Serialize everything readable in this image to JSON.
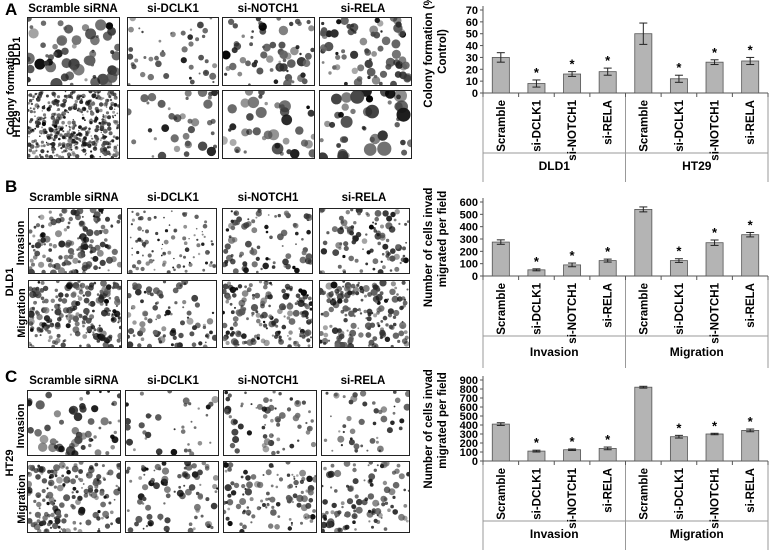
{
  "panels": {
    "A": {
      "letter": "A",
      "columns": [
        "Scramble siRNA",
        "si-DCLK1",
        "si-NOTCH1",
        "si-RELA"
      ],
      "rows": [
        "DLD1",
        "HT29"
      ],
      "row_group_label": "Colony formation"
    },
    "B": {
      "letter": "B",
      "columns": [
        "Scramble siRNA",
        "si-DCLK1",
        "si-NOTCH1",
        "si-RELA"
      ],
      "rows": [
        "Invasion",
        "Migration"
      ],
      "cell_line": "DLD1"
    },
    "C": {
      "letter": "C",
      "columns": [
        "Scramble siRNA",
        "si-DCLK1",
        "si-NOTCH1",
        "si-RELA"
      ],
      "rows": [
        "Invasion",
        "Migration"
      ],
      "cell_line": "HT29"
    }
  },
  "chart_data": [
    {
      "type": "bar",
      "ylabel": "Colony formation (% Control)",
      "ylim": [
        0,
        70
      ],
      "yticks": [
        0,
        10,
        20,
        30,
        40,
        50,
        60,
        70
      ],
      "categories": [
        "Scramble",
        "si-DCLK1",
        "si-NOTCH1",
        "si-RELA",
        "Scramble",
        "si-DCLK1",
        "si-NOTCH1",
        "si-RELA"
      ],
      "groups": [
        "DLD1",
        "HT29"
      ],
      "values": [
        30,
        8,
        16,
        18,
        50,
        12,
        26,
        27
      ],
      "errors": [
        4,
        3,
        2,
        3,
        9,
        3,
        2,
        3
      ],
      "significant": [
        false,
        true,
        true,
        true,
        false,
        true,
        true,
        true
      ],
      "marker": "*",
      "bar_color": "#b4b4b4"
    },
    {
      "type": "bar",
      "ylabel": "Number of cells invaded/ migrated per field",
      "ylim": [
        0,
        600
      ],
      "yticks": [
        0,
        100,
        200,
        300,
        400,
        500,
        600
      ],
      "categories": [
        "Scramble",
        "si-DCLK1",
        "si-NOTCH1",
        "si-RELA",
        "Scramble",
        "si-DCLK1",
        "si-NOTCH1",
        "si-RELA"
      ],
      "groups": [
        "Invasion",
        "Migration"
      ],
      "values": [
        275,
        50,
        90,
        125,
        540,
        125,
        270,
        335
      ],
      "errors": [
        18,
        8,
        15,
        12,
        20,
        15,
        22,
        18
      ],
      "significant": [
        false,
        true,
        true,
        true,
        false,
        true,
        true,
        true
      ],
      "marker": "*",
      "bar_color": "#b4b4b4"
    },
    {
      "type": "bar",
      "ylabel": "Number of cells invaded/ migrated per field",
      "ylim": [
        0,
        900
      ],
      "yticks": [
        0,
        100,
        200,
        300,
        400,
        500,
        600,
        700,
        800,
        900
      ],
      "categories": [
        "Scramble",
        "si-DCLK1",
        "si-NOTCH1",
        "si-RELA",
        "Scramble",
        "si-DCLK1",
        "si-NOTCH1",
        "si-RELA"
      ],
      "groups": [
        "Invasion",
        "Migration"
      ],
      "values": [
        410,
        110,
        125,
        140,
        820,
        270,
        300,
        340
      ],
      "errors": [
        15,
        10,
        8,
        15,
        10,
        15,
        8,
        15
      ],
      "significant": [
        false,
        true,
        true,
        true,
        false,
        true,
        true,
        true
      ],
      "marker": "*",
      "bar_color": "#b4b4b4"
    }
  ]
}
